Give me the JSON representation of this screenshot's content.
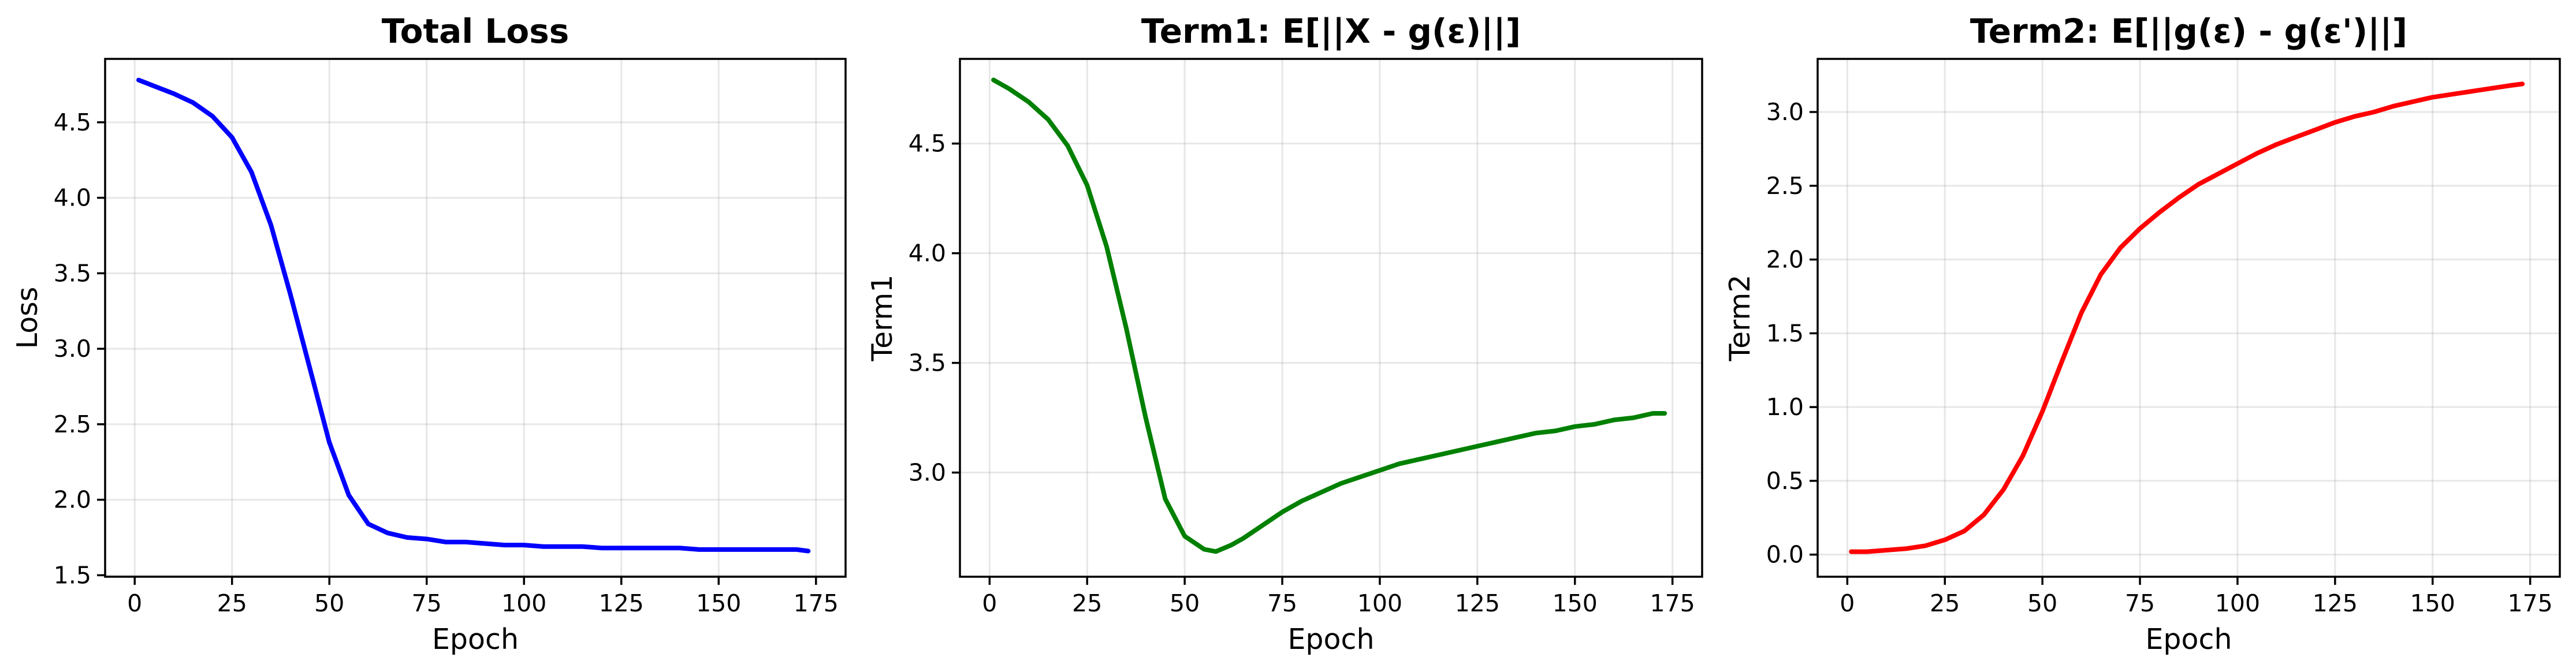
{
  "chart_data": [
    {
      "type": "line",
      "title": "Total Loss",
      "xlabel": "Epoch",
      "ylabel": "Loss",
      "xlim": [
        -7.6,
        182.6
      ],
      "ylim": [
        1.49,
        4.92
      ],
      "xticks": [
        0,
        25,
        50,
        75,
        100,
        125,
        150,
        175
      ],
      "yticks": [
        1.5,
        2.0,
        2.5,
        3.0,
        3.5,
        4.0,
        4.5
      ],
      "ytick_labels": [
        "1.5",
        "2.0",
        "2.5",
        "3.0",
        "3.5",
        "4.0",
        "4.5"
      ],
      "grid": true,
      "color": "#0000ff",
      "x": [
        1,
        5,
        10,
        15,
        20,
        25,
        30,
        35,
        40,
        45,
        50,
        55,
        60,
        65,
        70,
        75,
        80,
        85,
        90,
        95,
        100,
        105,
        110,
        115,
        120,
        125,
        130,
        135,
        140,
        145,
        150,
        155,
        160,
        165,
        170,
        173
      ],
      "y": [
        4.78,
        4.74,
        4.69,
        4.63,
        4.54,
        4.4,
        4.17,
        3.82,
        3.36,
        2.87,
        2.38,
        2.03,
        1.84,
        1.78,
        1.75,
        1.74,
        1.72,
        1.72,
        1.71,
        1.7,
        1.7,
        1.69,
        1.69,
        1.69,
        1.68,
        1.68,
        1.68,
        1.68,
        1.68,
        1.67,
        1.67,
        1.67,
        1.67,
        1.67,
        1.67,
        1.66
      ]
    },
    {
      "type": "line",
      "title": "Term1: E[||X - g(ε)||]",
      "xlabel": "Epoch",
      "ylabel": "Term1",
      "xlim": [
        -7.6,
        182.6
      ],
      "ylim": [
        2.525,
        4.886
      ],
      "xticks": [
        0,
        25,
        50,
        75,
        100,
        125,
        150,
        175
      ],
      "yticks": [
        3.0,
        3.5,
        4.0,
        4.5
      ],
      "ytick_labels": [
        "3.0",
        "3.5",
        "4.0",
        "4.5"
      ],
      "grid": true,
      "color": "#008000",
      "x": [
        1,
        5,
        10,
        15,
        20,
        25,
        30,
        35,
        40,
        45,
        50,
        55,
        58,
        62,
        65,
        70,
        75,
        80,
        85,
        90,
        95,
        100,
        105,
        110,
        115,
        120,
        125,
        130,
        135,
        140,
        145,
        150,
        155,
        160,
        165,
        170,
        173
      ],
      "y": [
        4.79,
        4.75,
        4.69,
        4.61,
        4.49,
        4.31,
        4.03,
        3.66,
        3.25,
        2.88,
        2.71,
        2.65,
        2.64,
        2.67,
        2.7,
        2.76,
        2.82,
        2.87,
        2.91,
        2.95,
        2.98,
        3.01,
        3.04,
        3.06,
        3.08,
        3.1,
        3.12,
        3.14,
        3.16,
        3.18,
        3.19,
        3.21,
        3.22,
        3.24,
        3.25,
        3.27,
        3.27
      ]
    },
    {
      "type": "line",
      "title": "Term2: E[||g(ε) - g(ε')||]",
      "xlabel": "Epoch",
      "ylabel": "Term2",
      "xlim": [
        -7.6,
        182.6
      ],
      "ylim": [
        -0.15,
        3.36
      ],
      "xticks": [
        0,
        25,
        50,
        75,
        100,
        125,
        150,
        175
      ],
      "yticks": [
        0.0,
        0.5,
        1.0,
        1.5,
        2.0,
        2.5,
        3.0
      ],
      "ytick_labels": [
        "0.0",
        "0.5",
        "1.0",
        "1.5",
        "2.0",
        "2.5",
        "3.0"
      ],
      "grid": true,
      "color": "#ff0000",
      "x": [
        1,
        5,
        10,
        15,
        20,
        25,
        30,
        35,
        40,
        45,
        50,
        55,
        60,
        65,
        70,
        75,
        80,
        85,
        90,
        95,
        100,
        105,
        110,
        115,
        120,
        125,
        130,
        135,
        140,
        145,
        150,
        155,
        160,
        165,
        170,
        173
      ],
      "y": [
        0.02,
        0.02,
        0.03,
        0.04,
        0.06,
        0.1,
        0.16,
        0.27,
        0.44,
        0.67,
        0.97,
        1.31,
        1.64,
        1.9,
        2.08,
        2.21,
        2.32,
        2.42,
        2.51,
        2.58,
        2.65,
        2.72,
        2.78,
        2.83,
        2.88,
        2.93,
        2.97,
        3.0,
        3.04,
        3.07,
        3.1,
        3.12,
        3.14,
        3.16,
        3.18,
        3.19
      ]
    }
  ]
}
